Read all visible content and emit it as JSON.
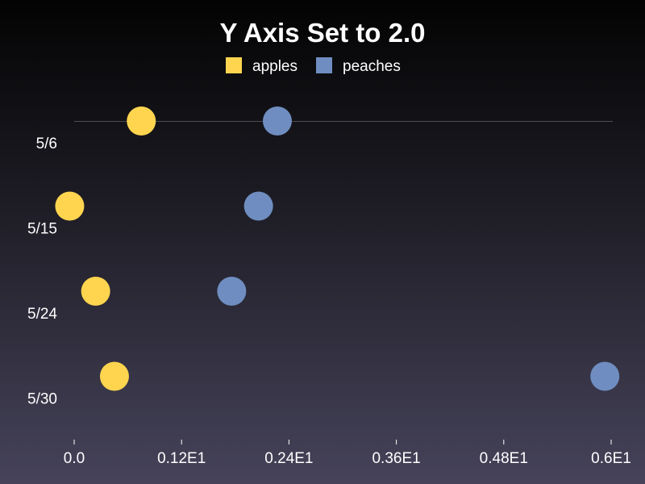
{
  "chart_data": {
    "type": "scatter",
    "title": "Y Axis Set to 2.0",
    "xlabel": "",
    "ylabel": "",
    "categories": [
      "5/6",
      "5/15",
      "5/24",
      "5/30"
    ],
    "x_ticks": [
      "0.0",
      "0.12E1",
      "0.24E1",
      "0.36E1",
      "0.48E1",
      "0.6E1"
    ],
    "xlim": [
      0,
      6
    ],
    "legend_position": "top-center",
    "grid": false,
    "series": [
      {
        "name": "apples",
        "color": "#ffd54f",
        "values": [
          0.75,
          -0.05,
          0.24,
          0.45
        ]
      },
      {
        "name": "peaches",
        "color": "#6f8dc0",
        "values": [
          2.27,
          2.06,
          1.76,
          5.93
        ]
      }
    ]
  }
}
